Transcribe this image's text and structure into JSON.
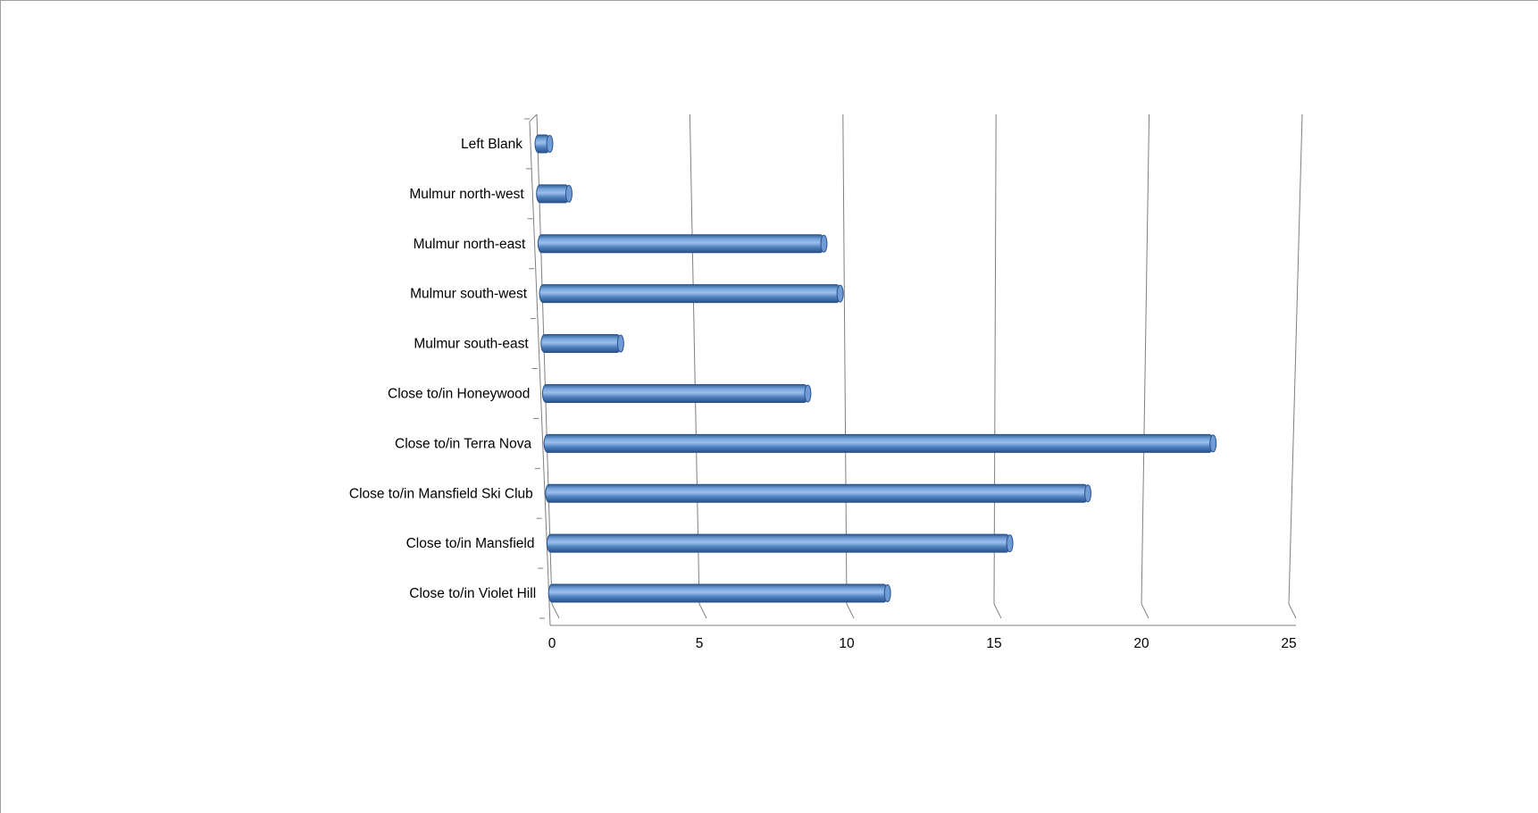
{
  "chart_data": {
    "type": "bar",
    "orientation": "horizontal",
    "style": "3d-cylinder",
    "categories": [
      "Left Blank",
      "Mulmur north-west",
      "Mulmur north-east",
      "Mulmur south-west",
      "Mulmur south-east",
      "Close to/in Honeywood",
      "Close to/in Terra Nova",
      "Close to/in Mansfield Ski Club",
      "Close to/in Mansfield",
      "Close to/in Violet Hill"
    ],
    "values": [
      0.5,
      1.1,
      9.7,
      10.2,
      2.7,
      9.0,
      22.7,
      18.4,
      15.7,
      11.5
    ],
    "xlim": [
      0,
      25
    ],
    "xticks": [
      "0",
      "5",
      "10",
      "15",
      "20",
      "25"
    ],
    "title": "",
    "xlabel": "",
    "ylabel": "",
    "grid": "vertical",
    "legend": "none",
    "colors": {
      "bar": "#4f81bd",
      "bar_light": "#8fb4e6",
      "bar_dark": "#2c5a93",
      "grid": "#808080"
    }
  }
}
